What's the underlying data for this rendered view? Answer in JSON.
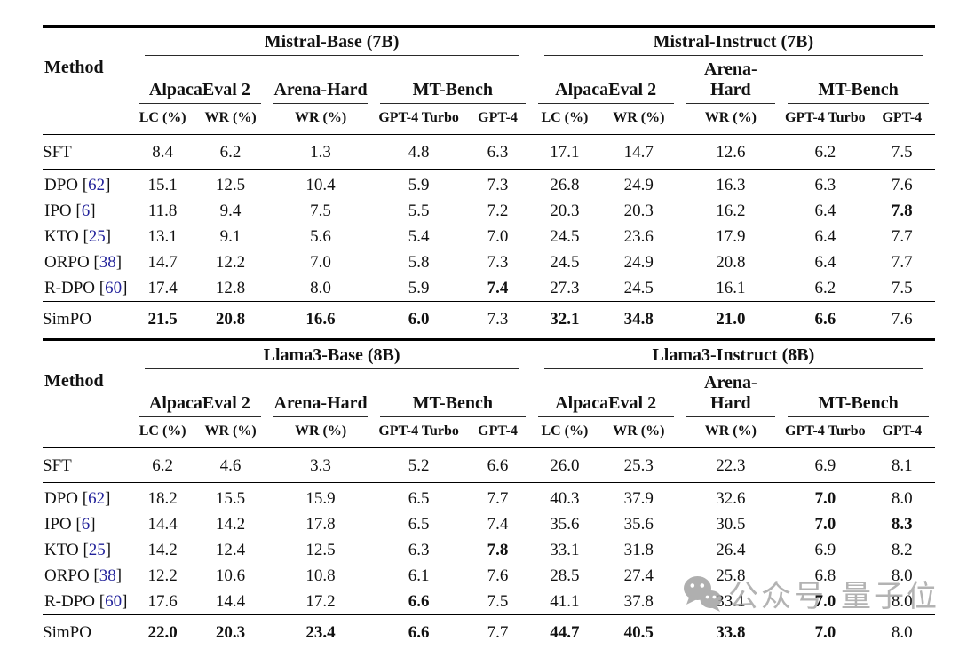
{
  "page": {
    "background": "#ffffff"
  },
  "colors": {
    "citation_blue": "#23239b",
    "rule_black": "#000000",
    "watermark_gray": "#a3a3a3"
  },
  "header": {
    "method_label": "Method",
    "column_groups": [
      "AlpacaEval 2",
      "Arena-Hard",
      "MT-Bench"
    ],
    "sub_columns": [
      "LC (%)",
      "WR (%)",
      "WR (%)",
      "GPT-4 Turbo",
      "GPT-4"
    ]
  },
  "tables": [
    {
      "left_title": "Mistral-Base (7B)",
      "right_title": "Mistral-Instruct (7B)",
      "rows": [
        {
          "group": "sft",
          "method": "SFT",
          "cite": null,
          "values": [
            "8.4",
            "6.2",
            "1.3",
            "4.8",
            "6.3",
            "17.1",
            "14.7",
            "12.6",
            "6.2",
            "7.5"
          ],
          "bold": []
        },
        {
          "group": "baseline first",
          "method": "DPO",
          "cite": "62",
          "values": [
            "15.1",
            "12.5",
            "10.4",
            "5.9",
            "7.3",
            "26.8",
            "24.9",
            "16.3",
            "6.3",
            "7.6"
          ],
          "bold": []
        },
        {
          "group": "baseline",
          "method": "IPO",
          "cite": "6",
          "values": [
            "11.8",
            "9.4",
            "7.5",
            "5.5",
            "7.2",
            "20.3",
            "20.3",
            "16.2",
            "6.4",
            "7.8"
          ],
          "bold": [
            9
          ]
        },
        {
          "group": "baseline",
          "method": "KTO",
          "cite": "25",
          "values": [
            "13.1",
            "9.1",
            "5.6",
            "5.4",
            "7.0",
            "24.5",
            "23.6",
            "17.9",
            "6.4",
            "7.7"
          ],
          "bold": []
        },
        {
          "group": "baseline",
          "method": "ORPO",
          "cite": "38",
          "values": [
            "14.7",
            "12.2",
            "7.0",
            "5.8",
            "7.3",
            "24.5",
            "24.9",
            "20.8",
            "6.4",
            "7.7"
          ],
          "bold": []
        },
        {
          "group": "baseline",
          "method": "R-DPO",
          "cite": "60",
          "values": [
            "17.4",
            "12.8",
            "8.0",
            "5.9",
            "7.4",
            "27.3",
            "24.5",
            "16.1",
            "6.2",
            "7.5"
          ],
          "bold": [
            4
          ]
        },
        {
          "group": "simpo",
          "method": "SimPO",
          "cite": null,
          "values": [
            "21.5",
            "20.8",
            "16.6",
            "6.0",
            "7.3",
            "32.1",
            "34.8",
            "21.0",
            "6.6",
            "7.6"
          ],
          "bold": [
            0,
            1,
            2,
            3,
            5,
            6,
            7,
            8
          ]
        }
      ]
    },
    {
      "left_title": "Llama3-Base (8B)",
      "right_title": "Llama3-Instruct (8B)",
      "rows": [
        {
          "group": "sft",
          "method": "SFT",
          "cite": null,
          "values": [
            "6.2",
            "4.6",
            "3.3",
            "5.2",
            "6.6",
            "26.0",
            "25.3",
            "22.3",
            "6.9",
            "8.1"
          ],
          "bold": []
        },
        {
          "group": "baseline first",
          "method": "DPO",
          "cite": "62",
          "values": [
            "18.2",
            "15.5",
            "15.9",
            "6.5",
            "7.7",
            "40.3",
            "37.9",
            "32.6",
            "7.0",
            "8.0"
          ],
          "bold": [
            8
          ]
        },
        {
          "group": "baseline",
          "method": "IPO",
          "cite": "6",
          "values": [
            "14.4",
            "14.2",
            "17.8",
            "6.5",
            "7.4",
            "35.6",
            "35.6",
            "30.5",
            "7.0",
            "8.3"
          ],
          "bold": [
            8,
            9
          ]
        },
        {
          "group": "baseline",
          "method": "KTO",
          "cite": "25",
          "values": [
            "14.2",
            "12.4",
            "12.5",
            "6.3",
            "7.8",
            "33.1",
            "31.8",
            "26.4",
            "6.9",
            "8.2"
          ],
          "bold": [
            4
          ]
        },
        {
          "group": "baseline",
          "method": "ORPO",
          "cite": "38",
          "values": [
            "12.2",
            "10.6",
            "10.8",
            "6.1",
            "7.6",
            "28.5",
            "27.4",
            "25.8",
            "6.8",
            "8.0"
          ],
          "bold": []
        },
        {
          "group": "baseline",
          "method": "R-DPO",
          "cite": "60",
          "values": [
            "17.6",
            "14.4",
            "17.2",
            "6.6",
            "7.5",
            "41.1",
            "37.8",
            "33.1",
            "7.0",
            "8.0"
          ],
          "bold": [
            3,
            8
          ]
        },
        {
          "group": "simpo",
          "method": "SimPO",
          "cite": null,
          "values": [
            "22.0",
            "20.3",
            "23.4",
            "6.6",
            "7.7",
            "44.7",
            "40.5",
            "33.8",
            "7.0",
            "8.0"
          ],
          "bold": [
            0,
            1,
            2,
            3,
            5,
            6,
            7,
            8
          ]
        }
      ]
    }
  ],
  "watermark": {
    "icon": "wechat-logo-icon",
    "label": "公众号",
    "brand": "量子位"
  }
}
